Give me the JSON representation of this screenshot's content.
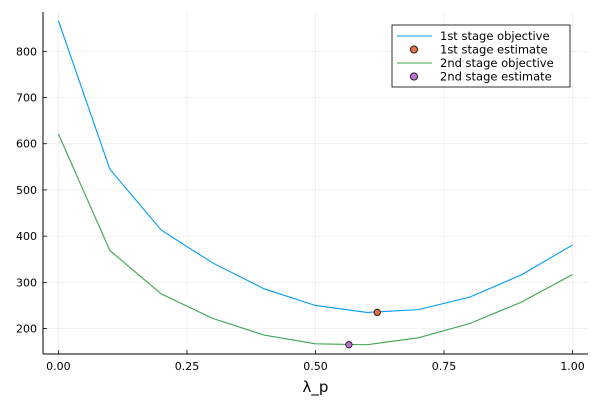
{
  "chart_data": {
    "type": "line",
    "xlabel": "λ_p",
    "ylabel": "",
    "xlim": [
      -0.03,
      1.03
    ],
    "ylim": [
      145,
      885
    ],
    "grid": true,
    "legend_position": "top-right",
    "xticks": [
      {
        "value": 0.0,
        "label": "0.00"
      },
      {
        "value": 0.25,
        "label": "0.25"
      },
      {
        "value": 0.5,
        "label": "0.50"
      },
      {
        "value": 0.75,
        "label": "0.75"
      },
      {
        "value": 1.0,
        "label": "1.00"
      }
    ],
    "yticks": [
      {
        "value": 200,
        "label": "200"
      },
      {
        "value": 300,
        "label": "300"
      },
      {
        "value": 400,
        "label": "400"
      },
      {
        "value": 500,
        "label": "500"
      },
      {
        "value": 600,
        "label": "600"
      },
      {
        "value": 700,
        "label": "700"
      },
      {
        "value": 800,
        "label": "800"
      }
    ],
    "series": [
      {
        "name": "1st stage objective",
        "kind": "line",
        "color": "#009AFA",
        "x": [
          0.0,
          0.1,
          0.2,
          0.3,
          0.4,
          0.5,
          0.6,
          0.7,
          0.8,
          0.9,
          1.0
        ],
        "y": [
          866,
          545,
          413,
          342,
          286,
          250,
          235,
          241,
          268,
          316,
          381
        ]
      },
      {
        "name": "1st stage estimate",
        "kind": "point",
        "color": "#E36F47",
        "x": [
          0.62
        ],
        "y": [
          235
        ]
      },
      {
        "name": "2nd stage objective",
        "kind": "line",
        "color": "#3EA44E",
        "x": [
          0.0,
          0.1,
          0.2,
          0.3,
          0.4,
          0.5,
          0.6,
          0.7,
          0.8,
          0.9,
          1.0
        ],
        "y": [
          621,
          369,
          275,
          222,
          186,
          167,
          165,
          180,
          211,
          257,
          317
        ]
      },
      {
        "name": "2nd stage estimate",
        "kind": "point",
        "color": "#C271D2",
        "x": [
          0.565
        ],
        "y": [
          165
        ]
      }
    ]
  }
}
